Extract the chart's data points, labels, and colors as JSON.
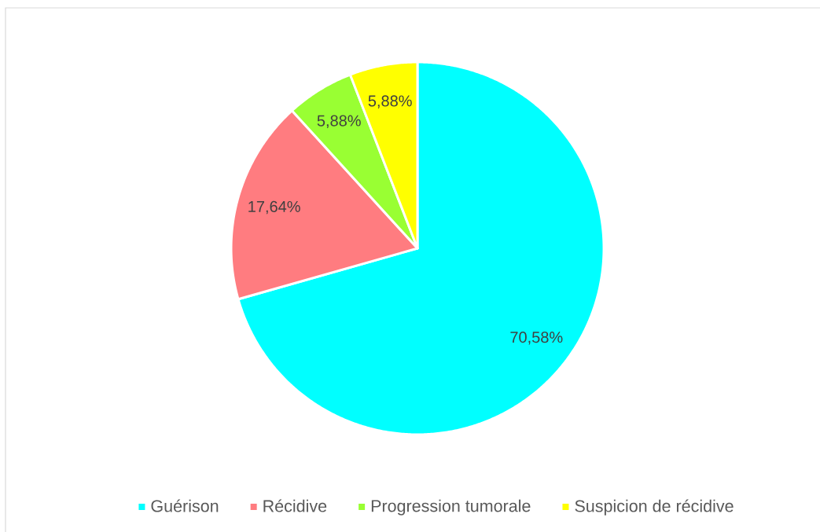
{
  "chart_data": {
    "type": "pie",
    "categories": [
      "Guérison",
      "Récidive",
      "Progression tumorale",
      "Suspicion de récidive"
    ],
    "values": [
      70.58,
      17.64,
      5.88,
      5.88
    ],
    "colors": [
      "#00ffff",
      "#ff7c80",
      "#99ff33",
      "#ffff00"
    ],
    "value_labels": [
      "70,58%",
      "17,64%",
      "5,88%",
      "5,88%"
    ],
    "legend": "bottom"
  }
}
